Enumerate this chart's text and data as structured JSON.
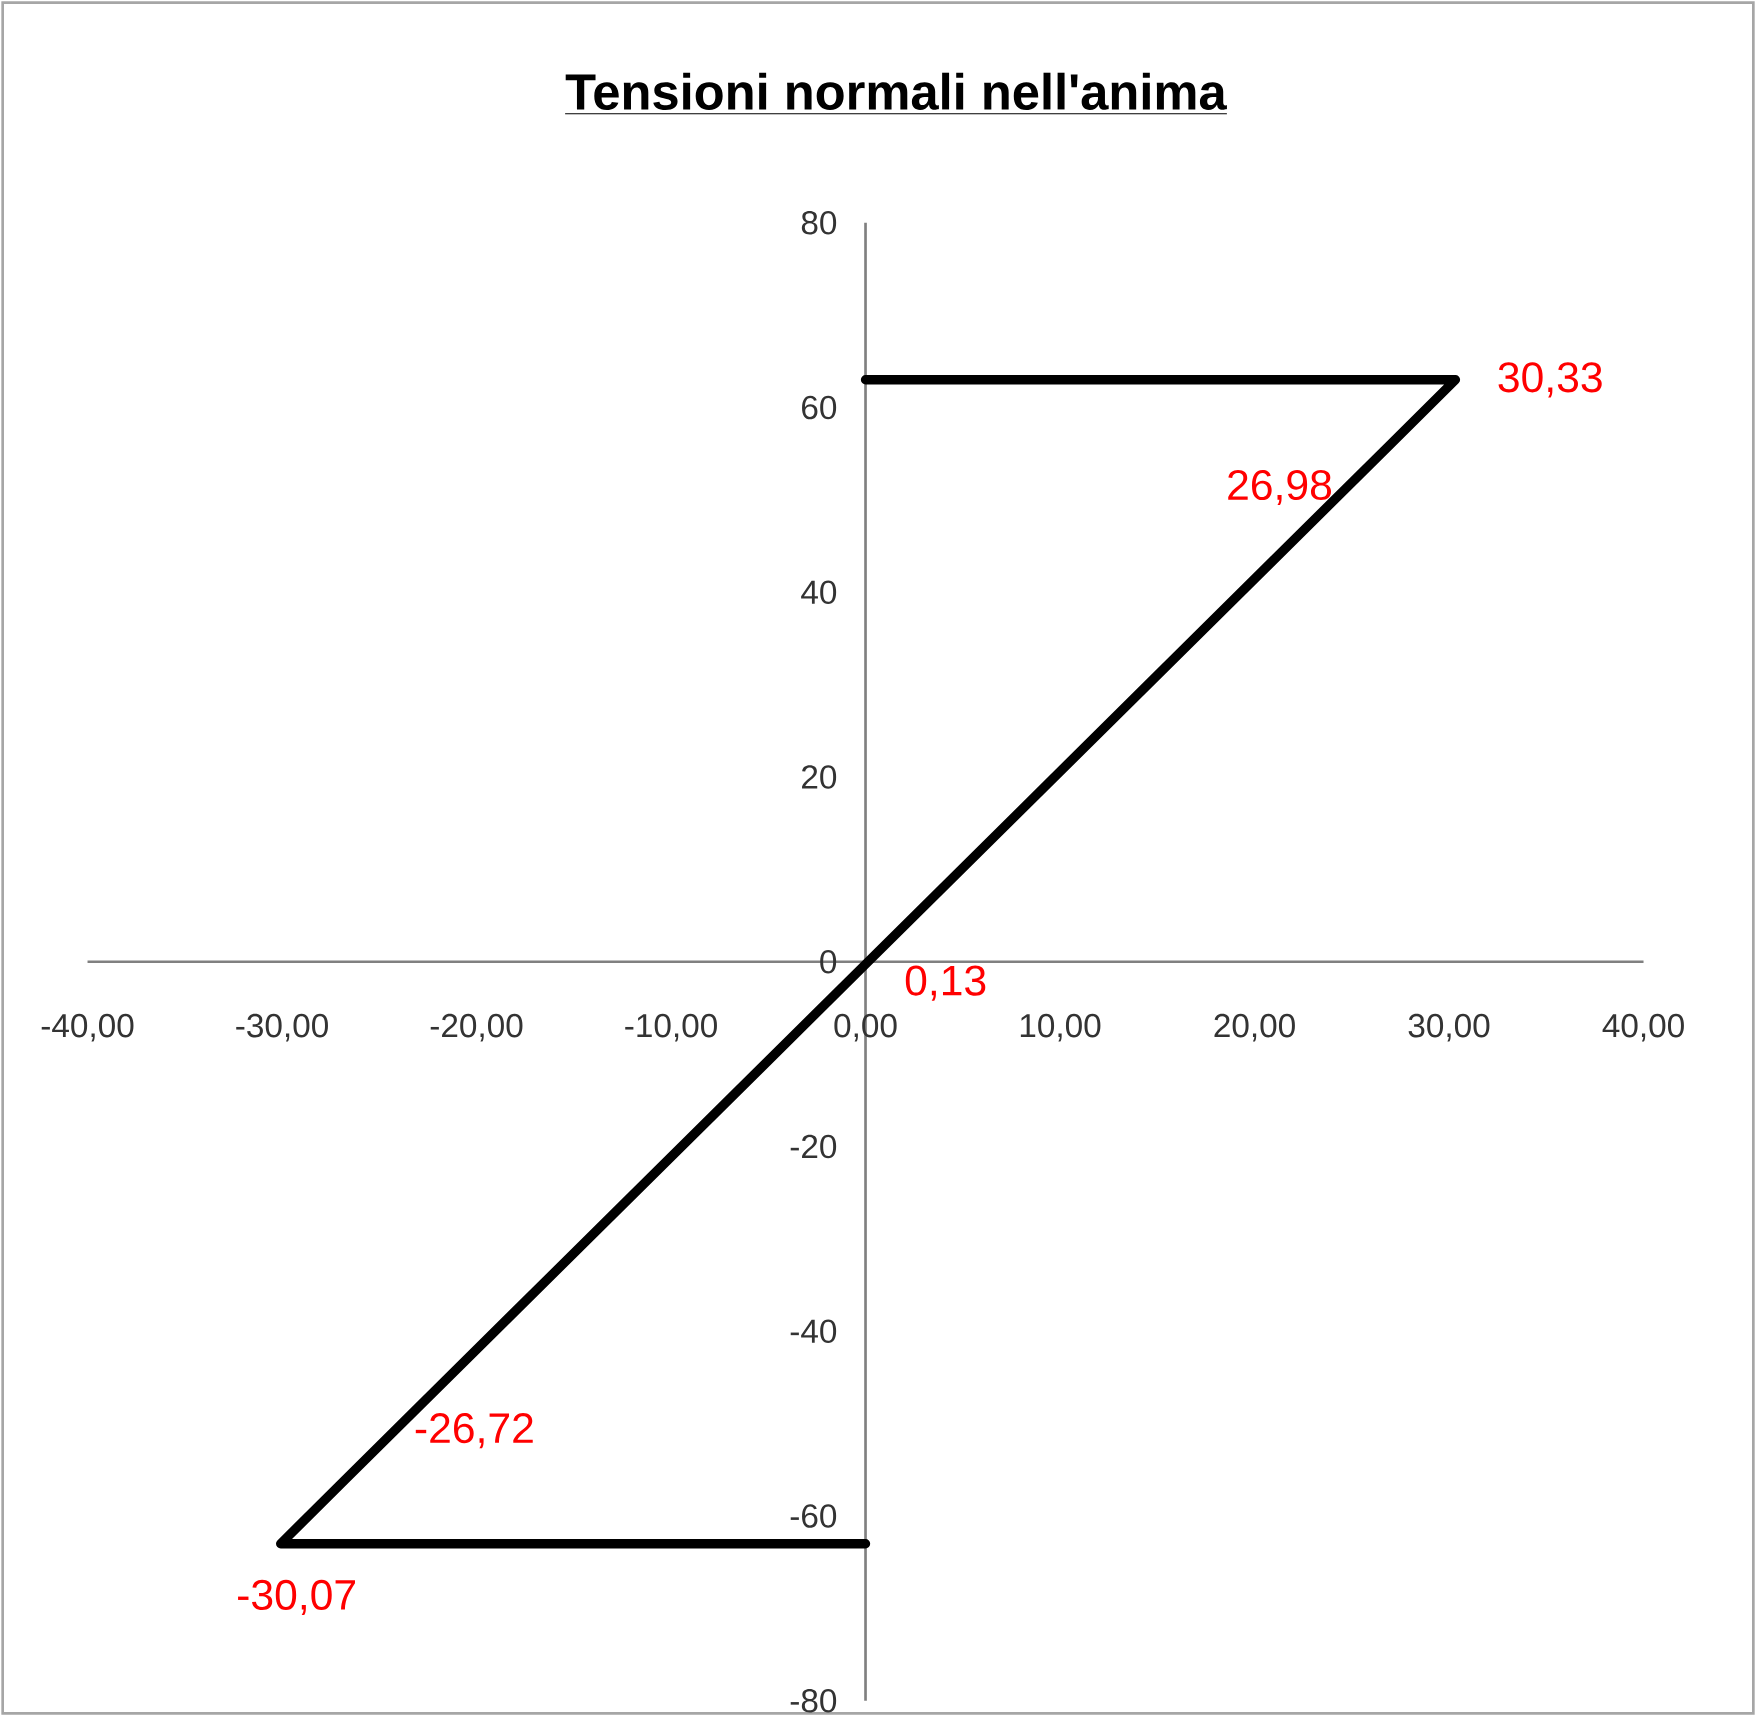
{
  "chart_data": {
    "type": "line",
    "title": "**Tensioni normali nell'anima**",
    "x": [
      0,
      30.33,
      26.98,
      0.13,
      -26.72,
      -30.07,
      0
    ],
    "series": [
      {
        "color": "#000000",
        "values": [
          63,
          63,
          56,
          0,
          -56,
          -63,
          -63
        ]
      }
    ],
    "xlim": [
      -40,
      40
    ],
    "xticks": [
      {
        "value": -40,
        "label": "-40,00"
      },
      {
        "value": -30,
        "label": "-30,00"
      },
      {
        "value": -20,
        "label": "-20,00"
      },
      {
        "value": -10,
        "label": "-10,00"
      },
      {
        "value": 0,
        "label": "0,00"
      },
      {
        "value": 10,
        "label": "10,00"
      },
      {
        "value": 20,
        "label": "20,00"
      },
      {
        "value": 30,
        "label": "30,00"
      },
      {
        "value": 40,
        "label": "40,00"
      }
    ],
    "ylim": [
      -80,
      80
    ],
    "yticks": [
      -80,
      -60,
      -40,
      -20,
      0,
      20,
      40,
      60,
      80
    ],
    "annotations": [
      {
        "text": "30,33",
        "x": 30.33,
        "y": 63
      },
      {
        "text": "26,98",
        "x": 26.98,
        "y": 56
      },
      {
        "text": "0,13",
        "x": 0.13,
        "y": 0
      },
      {
        "text": "-26,72",
        "x": -26.72,
        "y": -56
      },
      {
        "text": "-30,07",
        "x": -30.07,
        "y": -63
      }
    ],
    "marker": "none",
    "line_style": "solid"
  }
}
